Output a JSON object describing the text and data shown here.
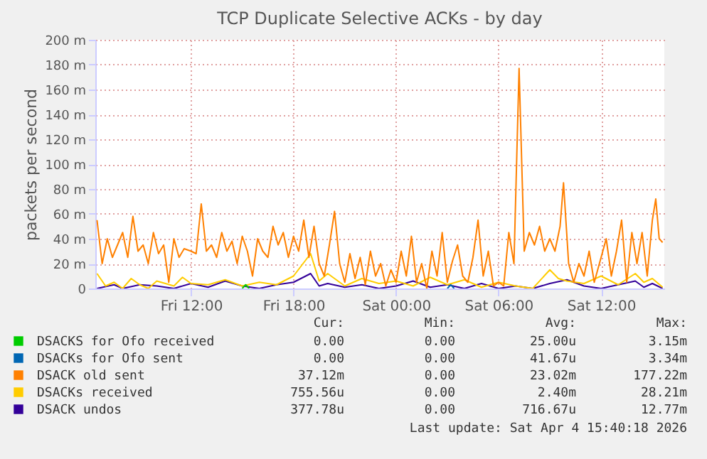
{
  "chart_data": {
    "type": "line",
    "title": "TCP Duplicate Selective ACKs - by day",
    "ylabel": "packets per second",
    "xlim": [
      "2026-04-03T06:24",
      "2026-04-04T15:42"
    ],
    "xticks": [
      {
        "value": "2026-04-03T12:00",
        "label": "Fri 12:00"
      },
      {
        "value": "2026-04-03T18:00",
        "label": "Fri 18:00"
      },
      {
        "value": "2026-04-04T00:00",
        "label": "Sat 00:00"
      },
      {
        "value": "2026-04-04T06:00",
        "label": "Sat 06:00"
      },
      {
        "value": "2026-04-04T12:00",
        "label": "Sat 12:00"
      }
    ],
    "ylim": [
      0,
      200
    ],
    "yticks": [
      0,
      {
        "value": 20,
        "label": "20 m"
      },
      {
        "value": 40,
        "label": "40 m"
      },
      {
        "value": 60,
        "label": "60 m"
      },
      {
        "value": 80,
        "label": "80 m"
      },
      {
        "value": 100,
        "label": "100 m"
      },
      {
        "value": 120,
        "label": "120 m"
      },
      {
        "value": 140,
        "label": "140 m"
      },
      {
        "value": 160,
        "label": "160 m"
      },
      {
        "value": 180,
        "label": "180 m"
      },
      {
        "value": 200,
        "label": "200 m"
      }
    ],
    "grid": true,
    "legend": "bottom",
    "series": [
      {
        "name": "DSACKS for Ofo received",
        "color": "#00cc00",
        "x": [
          "2026-04-03T15:00",
          "2026-04-03T15:12",
          "2026-04-03T15:24"
        ],
        "values": [
          0,
          3,
          0
        ]
      },
      {
        "name": "DSACKs for Ofo sent",
        "color": "#0066b3",
        "x": [
          "2026-04-04T03:00",
          "2026-04-04T03:12",
          "2026-04-04T03:24"
        ],
        "values": [
          0,
          3,
          0
        ]
      },
      {
        "name": "DSACK old sent",
        "color": "#ff8000",
        "x": [
          "2026-04-03T06:30",
          "2026-04-03T06:48",
          "2026-04-03T07:06",
          "2026-04-03T07:24",
          "2026-04-03T07:42",
          "2026-04-03T08:00",
          "2026-04-03T08:18",
          "2026-04-03T08:36",
          "2026-04-03T08:54",
          "2026-04-03T09:12",
          "2026-04-03T09:30",
          "2026-04-03T09:48",
          "2026-04-03T10:06",
          "2026-04-03T10:24",
          "2026-04-03T10:42",
          "2026-04-03T11:00",
          "2026-04-03T11:18",
          "2026-04-03T11:36",
          "2026-04-03T12:00",
          "2026-04-03T12:18",
          "2026-04-03T12:36",
          "2026-04-03T12:54",
          "2026-04-03T13:12",
          "2026-04-03T13:30",
          "2026-04-03T13:48",
          "2026-04-03T14:06",
          "2026-04-03T14:24",
          "2026-04-03T14:42",
          "2026-04-03T15:00",
          "2026-04-03T15:18",
          "2026-04-03T15:36",
          "2026-04-03T15:54",
          "2026-04-03T16:12",
          "2026-04-03T16:30",
          "2026-04-03T16:48",
          "2026-04-03T17:06",
          "2026-04-03T17:24",
          "2026-04-03T17:42",
          "2026-04-03T18:00",
          "2026-04-03T18:18",
          "2026-04-03T18:36",
          "2026-04-03T18:54",
          "2026-04-03T19:12",
          "2026-04-03T19:30",
          "2026-04-03T19:48",
          "2026-04-03T20:06",
          "2026-04-03T20:24",
          "2026-04-03T20:42",
          "2026-04-03T21:00",
          "2026-04-03T21:18",
          "2026-04-03T21:36",
          "2026-04-03T21:54",
          "2026-04-03T22:12",
          "2026-04-03T22:30",
          "2026-04-03T22:48",
          "2026-04-03T23:06",
          "2026-04-03T23:24",
          "2026-04-03T23:42",
          "2026-04-04T00:00",
          "2026-04-04T00:18",
          "2026-04-04T00:36",
          "2026-04-04T00:54",
          "2026-04-04T01:12",
          "2026-04-04T01:30",
          "2026-04-04T01:48",
          "2026-04-04T02:06",
          "2026-04-04T02:24",
          "2026-04-04T02:42",
          "2026-04-04T03:00",
          "2026-04-04T03:18",
          "2026-04-04T03:36",
          "2026-04-04T03:54",
          "2026-04-04T04:12",
          "2026-04-04T04:30",
          "2026-04-04T04:48",
          "2026-04-04T05:06",
          "2026-04-04T05:24",
          "2026-04-04T05:42",
          "2026-04-04T06:00",
          "2026-04-04T06:18",
          "2026-04-04T06:36",
          "2026-04-04T06:54",
          "2026-04-04T07:12",
          "2026-04-04T07:30",
          "2026-04-04T07:48",
          "2026-04-04T08:06",
          "2026-04-04T08:24",
          "2026-04-04T08:42",
          "2026-04-04T09:00",
          "2026-04-04T09:18",
          "2026-04-04T09:36",
          "2026-04-04T09:48",
          "2026-04-04T10:06",
          "2026-04-04T10:24",
          "2026-04-04T10:42",
          "2026-04-04T11:00",
          "2026-04-04T11:18",
          "2026-04-04T11:36",
          "2026-04-04T12:00",
          "2026-04-04T12:18",
          "2026-04-04T12:36",
          "2026-04-04T12:54",
          "2026-04-04T13:12",
          "2026-04-04T13:30",
          "2026-04-04T13:48",
          "2026-04-04T14:06",
          "2026-04-04T14:24",
          "2026-04-04T14:42",
          "2026-04-04T15:00",
          "2026-04-04T15:12",
          "2026-04-04T15:24",
          "2026-04-04T15:36"
        ],
        "values": [
          55,
          20,
          40,
          25,
          35,
          45,
          25,
          58,
          30,
          35,
          20,
          45,
          28,
          35,
          5,
          40,
          25,
          32,
          30,
          28,
          68,
          30,
          35,
          25,
          45,
          30,
          38,
          20,
          42,
          30,
          10,
          40,
          30,
          25,
          50,
          35,
          45,
          25,
          42,
          30,
          55,
          25,
          50,
          20,
          10,
          35,
          62,
          20,
          5,
          28,
          8,
          25,
          3,
          30,
          10,
          20,
          2,
          15,
          5,
          30,
          10,
          42,
          5,
          20,
          0,
          30,
          10,
          45,
          5,
          22,
          35,
          10,
          5,
          25,
          55,
          10,
          30,
          2,
          5,
          2,
          45,
          20,
          177,
          30,
          45,
          35,
          50,
          30,
          40,
          30,
          50,
          85,
          20,
          5,
          20,
          10,
          30,
          5,
          25,
          40,
          10,
          30,
          55,
          5,
          45,
          20,
          45,
          10,
          55,
          72,
          40,
          37
        ]
      },
      {
        "name": "DSACKs received",
        "color": "#ffcc00",
        "x": [
          "2026-04-03T06:30",
          "2026-04-03T07:00",
          "2026-04-03T07:30",
          "2026-04-03T08:00",
          "2026-04-03T08:30",
          "2026-04-03T09:00",
          "2026-04-03T09:30",
          "2026-04-03T10:00",
          "2026-04-03T11:00",
          "2026-04-03T11:30",
          "2026-04-03T12:00",
          "2026-04-03T13:00",
          "2026-04-03T14:00",
          "2026-04-03T15:00",
          "2026-04-03T16:00",
          "2026-04-03T17:00",
          "2026-04-03T18:00",
          "2026-04-03T19:00",
          "2026-04-03T19:30",
          "2026-04-03T20:00",
          "2026-04-03T21:00",
          "2026-04-03T22:00",
          "2026-04-03T23:00",
          "2026-04-04T00:00",
          "2026-04-04T01:00",
          "2026-04-04T02:00",
          "2026-04-04T03:00",
          "2026-04-04T04:00",
          "2026-04-04T05:00",
          "2026-04-04T06:00",
          "2026-04-04T07:00",
          "2026-04-04T08:00",
          "2026-04-04T09:00",
          "2026-04-04T09:30",
          "2026-04-04T10:00",
          "2026-04-04T11:00",
          "2026-04-04T12:00",
          "2026-04-04T13:00",
          "2026-04-04T14:00",
          "2026-04-04T14:30",
          "2026-04-04T15:00",
          "2026-04-04T15:36"
        ],
        "values": [
          12,
          2,
          5,
          0,
          8,
          3,
          0,
          6,
          2,
          9,
          4,
          3,
          7,
          2,
          5,
          3,
          10,
          28,
          6,
          12,
          2,
          8,
          4,
          6,
          2,
          9,
          3,
          7,
          1,
          5,
          2,
          0,
          15,
          8,
          6,
          4,
          10,
          3,
          12,
          5,
          8,
          1
        ]
      },
      {
        "name": "DSACK undos",
        "color": "#330099",
        "x": [
          "2026-04-03T06:30",
          "2026-04-03T07:30",
          "2026-04-03T08:00",
          "2026-04-03T09:00",
          "2026-04-03T10:00",
          "2026-04-03T11:00",
          "2026-04-03T12:00",
          "2026-04-03T13:00",
          "2026-04-03T14:00",
          "2026-04-03T15:00",
          "2026-04-03T16:00",
          "2026-04-03T17:00",
          "2026-04-03T18:00",
          "2026-04-03T19:00",
          "2026-04-03T19:30",
          "2026-04-03T20:00",
          "2026-04-03T21:00",
          "2026-04-03T22:00",
          "2026-04-03T23:00",
          "2026-04-04T00:00",
          "2026-04-04T01:00",
          "2026-04-04T02:00",
          "2026-04-04T03:00",
          "2026-04-04T04:00",
          "2026-04-04T05:00",
          "2026-04-04T06:00",
          "2026-04-04T07:00",
          "2026-04-04T08:00",
          "2026-04-04T09:00",
          "2026-04-04T10:00",
          "2026-04-04T11:00",
          "2026-04-04T12:00",
          "2026-04-04T13:00",
          "2026-04-04T14:00",
          "2026-04-04T14:30",
          "2026-04-04T15:00",
          "2026-04-04T15:36"
        ],
        "values": [
          0,
          3,
          0,
          3,
          2,
          0,
          4,
          1,
          6,
          2,
          0,
          3,
          5,
          12,
          2,
          4,
          1,
          3,
          0,
          2,
          6,
          1,
          3,
          0,
          4,
          0,
          2,
          0,
          4,
          7,
          2,
          0,
          3,
          6,
          1,
          4,
          0
        ]
      }
    ],
    "annotations": [
      "Cur:",
      "Min:",
      "Avg:",
      "Max:",
      "0.00",
      "0.00",
      "25.00u",
      "3.15m",
      "0.00",
      "0.00",
      "41.67u",
      "3.34m",
      "37.12m",
      "0.00",
      "23.02m",
      "177.22m",
      "755.56u",
      "0.00",
      "2.40m",
      "28.21m",
      "377.78u",
      "0.00",
      "716.67u",
      "12.77m",
      "Last update: Sat Apr  4 15:40:18 2026"
    ]
  }
}
